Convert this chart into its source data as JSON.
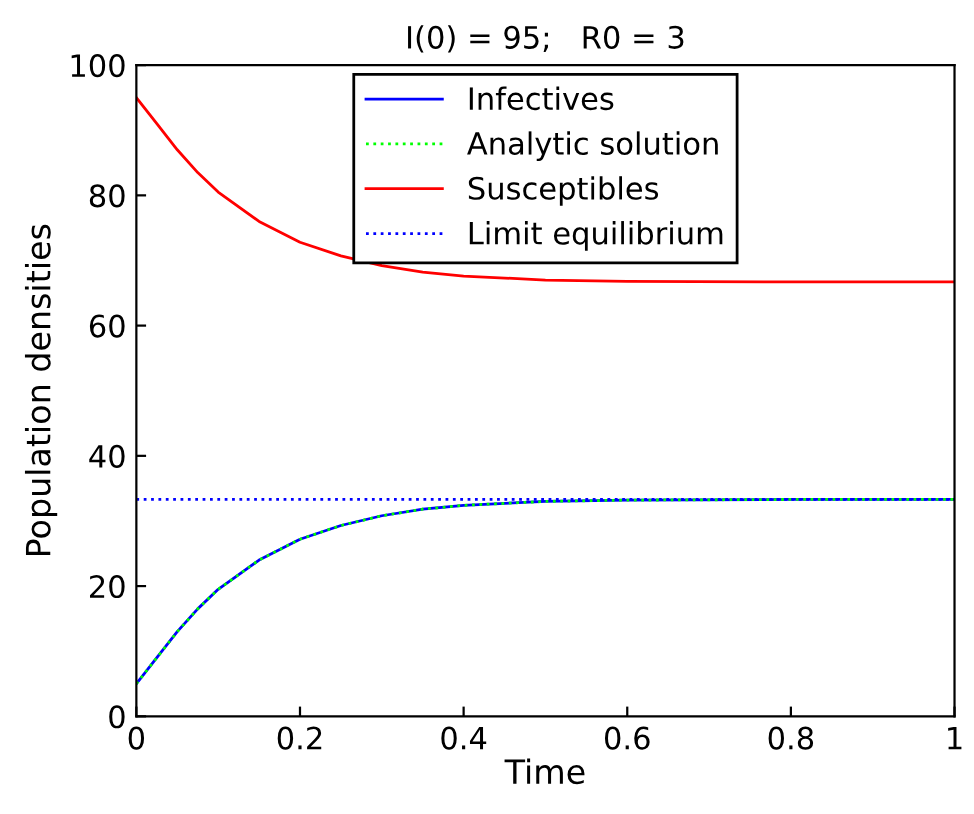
{
  "chart_data": {
    "type": "line",
    "title": "I(0) = 95;   R0 = 3",
    "xlabel": "Time",
    "ylabel": "Population densities",
    "xlim": [
      0,
      1
    ],
    "ylim": [
      0,
      100
    ],
    "xticks": [
      0,
      0.2,
      0.4,
      0.6,
      0.8,
      1
    ],
    "yticks": [
      0,
      20,
      40,
      60,
      80,
      100
    ],
    "grid": false,
    "legend": "top",
    "series": [
      {
        "name": "Infectives",
        "color": "#0000ff",
        "line_style": "solid",
        "marker": "none",
        "x": [
          0,
          0.025,
          0.05,
          0.075,
          0.1,
          0.15,
          0.2,
          0.25,
          0.3,
          0.35,
          0.4,
          0.5,
          0.6,
          0.8,
          1
        ],
        "values": [
          5,
          9,
          13,
          16.5,
          19.5,
          24,
          27.2,
          29.3,
          30.8,
          31.8,
          32.4,
          33,
          33.2,
          33.3,
          33.3
        ]
      },
      {
        "name": "Analytic solution",
        "color": "#00ff00",
        "line_style": "dotted",
        "marker": "none",
        "x": [
          0,
          0.025,
          0.05,
          0.075,
          0.1,
          0.15,
          0.2,
          0.25,
          0.3,
          0.35,
          0.4,
          0.5,
          0.6,
          0.8,
          1
        ],
        "values": [
          5,
          9,
          13,
          16.5,
          19.5,
          24,
          27.2,
          29.3,
          30.8,
          31.8,
          32.4,
          33,
          33.2,
          33.3,
          33.3
        ]
      },
      {
        "name": "Susceptibles",
        "color": "#ff0000",
        "line_style": "solid",
        "marker": "none",
        "x": [
          0,
          0.025,
          0.05,
          0.075,
          0.1,
          0.15,
          0.2,
          0.25,
          0.3,
          0.35,
          0.4,
          0.5,
          0.6,
          0.8,
          1
        ],
        "values": [
          95,
          91,
          87,
          83.5,
          80.5,
          76,
          72.8,
          70.7,
          69.2,
          68.2,
          67.6,
          67,
          66.8,
          66.7,
          66.7
        ]
      },
      {
        "name": "Limit equilibrium",
        "color": "#0000ff",
        "line_style": "dotted",
        "marker": "none",
        "x": [
          0,
          1
        ],
        "values": [
          33.3,
          33.3
        ]
      }
    ]
  }
}
